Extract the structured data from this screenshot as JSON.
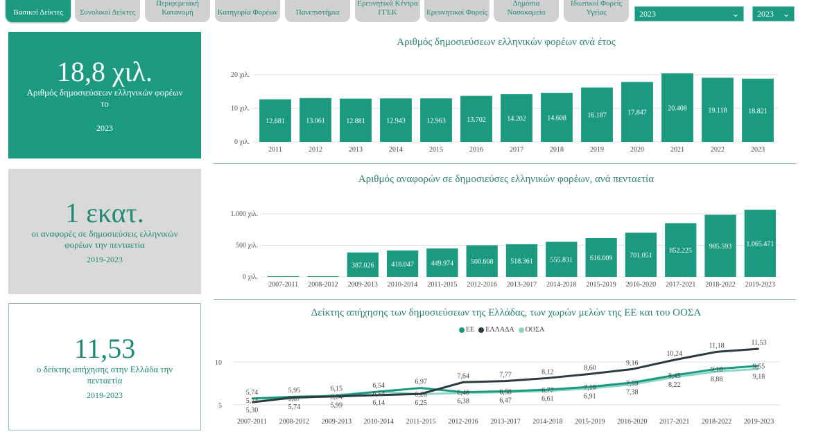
{
  "tabs": [
    {
      "label": "Βασικοί Δείκτες",
      "active": true
    },
    {
      "label": "Συνολικοί Δείκτες"
    },
    {
      "label": "Περιφερειακή Κατανομή"
    },
    {
      "label": "Κατηγορία Φορέων"
    },
    {
      "label": "Πανεπιστήμια"
    },
    {
      "label": "Ερευνητικά Κέντρα ΓΓΕΚ"
    },
    {
      "label": "Ερευνητικοί Φορείς"
    },
    {
      "label": "Δημόσια Νοσοκομεία"
    },
    {
      "label": "Ιδιωτικοί Φορείς Υγείας"
    }
  ],
  "filters": {
    "year_from": "2023",
    "year_to": "2023"
  },
  "cards": {
    "publications": {
      "value": "18,8 χιλ.",
      "label": "Αριθμός δημοσιεύσεων ελληνικών φορέων το",
      "year": "2023"
    },
    "citations": {
      "value": "1 εκατ.",
      "label": "οι αναφορές σε δημοσιεύσεις ελληνικών φορέων την πενταετία",
      "period": "2019-2023"
    },
    "impact": {
      "value": "11,53",
      "label": "ο δείκτης απήχησης στην Ελλάδα την πενταετία",
      "period": "2019-2023"
    }
  },
  "colors": {
    "accent": "#1b9a80",
    "greece": "#2b3a3f",
    "oecd": "#8fd6c6",
    "grid": "#e2e2e2"
  },
  "chart_data": [
    {
      "type": "bar",
      "title": "Αριθμός δημοσιεύσεων ελληνικών φορέων ανά έτος",
      "categories": [
        "2011",
        "2012",
        "2013",
        "2014",
        "2015",
        "2016",
        "2017",
        "2018",
        "2019",
        "2020",
        "2021",
        "2022",
        "2023"
      ],
      "values": [
        12681,
        13061,
        12881,
        12943,
        12963,
        13702,
        14202,
        14608,
        16187,
        17847,
        20408,
        19118,
        18821
      ],
      "value_labels": [
        "12.681",
        "13.061",
        "12.881",
        "12.943",
        "12.963",
        "13.702",
        "14.202",
        "14.608",
        "16.187",
        "17.847",
        "20.408",
        "19.118",
        "18.821"
      ],
      "yticks": [
        0,
        10000,
        20000
      ],
      "ytick_labels": [
        "0 χιλ.",
        "10 χιλ.",
        "20 χιλ."
      ],
      "ylim": [
        0,
        20000
      ]
    },
    {
      "type": "bar",
      "title": "Αριθμός αναφορών σε δημοσιεύσες ελληνικών φορέων, ανά πενταετία",
      "categories": [
        "2007-2011",
        "2008-2012",
        "2009-2013",
        "2010-2014",
        "2011-2015",
        "2012-2016",
        "2013-2017",
        "2014-2018",
        "2015-2019",
        "2016-2020",
        "2017-2021",
        "2018-2022",
        "2019-2023"
      ],
      "values": [
        10000,
        10000,
        387026,
        418047,
        449974,
        500608,
        518361,
        555831,
        616009,
        701051,
        852225,
        985593,
        1065471
      ],
      "value_labels": [
        "",
        "",
        "387.026",
        "418.047",
        "449.974",
        "500.608",
        "518.361",
        "555.831",
        "616.009",
        "701.051",
        "852.225",
        "985.593",
        "1.065.471"
      ],
      "yticks": [
        0,
        500000,
        1000000
      ],
      "ytick_labels": [
        "0 χιλ.",
        "500 χιλ.",
        "1.000 χιλ."
      ],
      "ylim": [
        0,
        1000000
      ]
    },
    {
      "type": "line",
      "title": "Δείκτης απήχησης των δημοσιεύσεων της Ελλάδας, των χωρών μελών της ΕΕ και του ΟΟΣΑ",
      "categories": [
        "2007-2011",
        "2008-2012",
        "2009-2013",
        "2010-2014",
        "2011-2015",
        "2012-2016",
        "2013-2017",
        "2014-2018",
        "2015-2019",
        "2016-2020",
        "2017-2021",
        "2018-2022",
        "2019-2023"
      ],
      "series": [
        {
          "name": "ΕΕ",
          "values": [
            5.74,
            5.95,
            6.04,
            6.54,
            6.97,
            6.48,
            6.58,
            6.77,
            7.1,
            7.59,
            8.45,
            9.18,
            9.55
          ],
          "labels": [
            "5,74",
            "5,95",
            "6,04",
            "6,54",
            "6,97",
            "6,48",
            "6,58",
            "6,77",
            "7,10",
            "7,59",
            "8,45",
            "9,18",
            "9,55"
          ]
        },
        {
          "name": "ΕΛΛΑΔΑ",
          "values": [
            5.3,
            5.87,
            5.99,
            6.14,
            6.28,
            7.64,
            7.77,
            8.12,
            8.6,
            9.16,
            10.24,
            11.18,
            11.53
          ],
          "labels": [
            "5,30",
            "5,87",
            "5,99",
            "6,14",
            "6,28",
            "7,64",
            "7,77",
            "8,12",
            "8,60",
            "9,16",
            "10,24",
            "11,18",
            "11,53"
          ]
        },
        {
          "name": "ΟΟΣΑ",
          "values": [
            5.74,
            5.74,
            6.15,
            6.54,
            6.25,
            6.38,
            6.47,
            6.61,
            6.91,
            7.38,
            8.22,
            8.88,
            9.18
          ],
          "labels": [
            "5,74",
            "5,74",
            "6,15",
            "6,54",
            "6,25",
            "6,38",
            "6,47",
            "6,61",
            "6,91",
            "7,38",
            "8,22",
            "8,88",
            "9,18"
          ]
        }
      ],
      "yticks": [
        5,
        10
      ],
      "ytick_labels": [
        "5",
        "10"
      ],
      "legend": "top-center"
    }
  ]
}
